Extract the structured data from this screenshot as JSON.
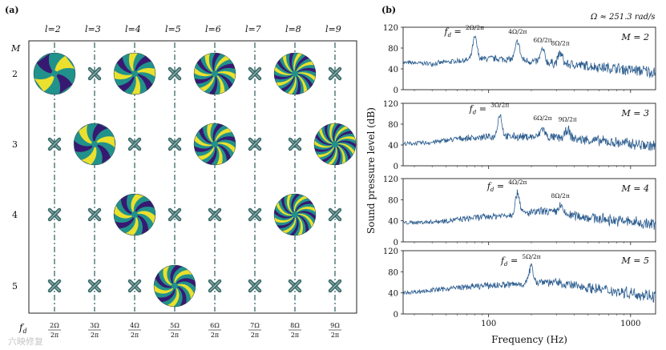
{
  "figure": {
    "panel_a_label": "(a)",
    "panel_b_label": "(b)",
    "omega_note": "Ω ≈ 251.3 rad/s",
    "watermark": "六映修复"
  },
  "panel_a": {
    "l_prefix": "l=",
    "l_values": [
      "2",
      "3",
      "4",
      "5",
      "6",
      "7",
      "8",
      "9"
    ],
    "m_axis_label": "M",
    "m_values": [
      "2",
      "3",
      "4",
      "5"
    ],
    "fd_label": "f",
    "fd_subscript": "d",
    "freq_numerators": [
      "2Ω",
      "3Ω",
      "4Ω",
      "5Ω",
      "6Ω",
      "7Ω",
      "8Ω",
      "9Ω"
    ],
    "freq_denominator": "2π",
    "grid": [
      [
        "mode",
        "x",
        "mode",
        "x",
        "mode",
        "x",
        "mode",
        "x"
      ],
      [
        "x",
        "mode",
        "x",
        "x",
        "mode",
        "x",
        "x",
        "mode"
      ],
      [
        "x",
        "x",
        "mode",
        "x",
        "x",
        "x",
        "mode",
        "x"
      ],
      [
        "x",
        "x",
        "x",
        "mode",
        "x",
        "x",
        "x",
        "x"
      ]
    ],
    "colors": {
      "dark": "#3b0f70",
      "mid": "#21918c",
      "bright": "#fde725",
      "cross": "#3d6b6a"
    }
  },
  "chart_data": [
    {
      "type": "line",
      "panel": "M = 2",
      "m_label": "M = 2",
      "xscale": "log",
      "xlim": [
        25,
        1500
      ],
      "ylim": [
        0,
        120
      ],
      "yticks": [
        "0",
        "40",
        "80",
        "120"
      ],
      "baseline": [
        [
          25,
          52
        ],
        [
          40,
          50
        ],
        [
          60,
          55
        ],
        [
          80,
          58
        ],
        [
          100,
          60
        ],
        [
          150,
          58
        ],
        [
          250,
          52
        ],
        [
          400,
          48
        ],
        [
          700,
          42
        ],
        [
          1000,
          38
        ],
        [
          1500,
          34
        ]
      ],
      "peaks": [
        {
          "x": 80,
          "y": 100,
          "label": "2Ω/2π",
          "fd": true
        },
        {
          "x": 160,
          "y": 92,
          "label": "4Ω/2π"
        },
        {
          "x": 240,
          "y": 76,
          "label": "6Ω/2π"
        },
        {
          "x": 320,
          "y": 70,
          "label": "8Ω/2π"
        }
      ]
    },
    {
      "type": "line",
      "panel": "M = 3",
      "m_label": "M = 3",
      "xscale": "log",
      "xlim": [
        25,
        1500
      ],
      "ylim": [
        0,
        120
      ],
      "yticks": [
        "0",
        "40",
        "80",
        "120"
      ],
      "baseline": [
        [
          25,
          42
        ],
        [
          40,
          45
        ],
        [
          60,
          52
        ],
        [
          80,
          54
        ],
        [
          100,
          55
        ],
        [
          150,
          56
        ],
        [
          250,
          55
        ],
        [
          400,
          52
        ],
        [
          700,
          46
        ],
        [
          1000,
          42
        ],
        [
          1500,
          38
        ]
      ],
      "peaks": [
        {
          "x": 120,
          "y": 98,
          "label": "3Ω/2π",
          "fd": true
        },
        {
          "x": 240,
          "y": 72,
          "label": "6Ω/2π"
        },
        {
          "x": 360,
          "y": 70,
          "label": "9Ω/2π"
        }
      ]
    },
    {
      "type": "line",
      "panel": "M = 4",
      "m_label": "M = 4",
      "xscale": "log",
      "xlim": [
        25,
        1500
      ],
      "ylim": [
        0,
        120
      ],
      "yticks": [
        "0",
        "40",
        "80",
        "120"
      ],
      "baseline": [
        [
          25,
          36
        ],
        [
          40,
          38
        ],
        [
          60,
          42
        ],
        [
          80,
          46
        ],
        [
          100,
          48
        ],
        [
          150,
          52
        ],
        [
          250,
          58
        ],
        [
          400,
          50
        ],
        [
          700,
          42
        ],
        [
          1000,
          38
        ],
        [
          1500,
          32
        ]
      ],
      "peaks": [
        {
          "x": 160,
          "y": 94,
          "label": "4Ω/2π",
          "fd": true
        },
        {
          "x": 320,
          "y": 68,
          "label": "8Ω/2π"
        }
      ]
    },
    {
      "type": "line",
      "panel": "M = 5",
      "m_label": "M = 5",
      "xscale": "log",
      "xlim": [
        25,
        1500
      ],
      "ylim": [
        0,
        120
      ],
      "yticks": [
        "0",
        "40",
        "80",
        "120"
      ],
      "baseline": [
        [
          25,
          40
        ],
        [
          40,
          45
        ],
        [
          60,
          50
        ],
        [
          80,
          52
        ],
        [
          100,
          54
        ],
        [
          150,
          56
        ],
        [
          250,
          62
        ],
        [
          400,
          54
        ],
        [
          700,
          45
        ],
        [
          1000,
          40
        ],
        [
          1500,
          34
        ]
      ],
      "peaks": [
        {
          "x": 200,
          "y": 90,
          "label": "5Ω/2π",
          "fd": true
        }
      ]
    }
  ],
  "axes_b": {
    "xlabel": "Frequency (Hz)",
    "ylabel": "Sound pressure level (dB)",
    "xtick_labels": [
      "100",
      "1000"
    ],
    "line_color": "#2c5d8f"
  }
}
